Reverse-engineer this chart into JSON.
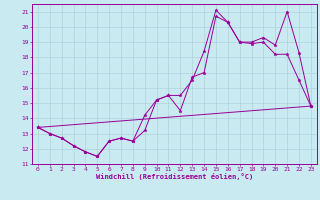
{
  "background_color": "#c8eaf0",
  "grid_color": "#a8ccd8",
  "line_color": "#990099",
  "xlabel": "Windchill (Refroidissement éolien,°C)",
  "xlim": [
    -0.5,
    23.5
  ],
  "ylim": [
    11,
    21.5
  ],
  "yticks": [
    11,
    12,
    13,
    14,
    15,
    16,
    17,
    18,
    19,
    20,
    21
  ],
  "xticks": [
    0,
    1,
    2,
    3,
    4,
    5,
    6,
    7,
    8,
    9,
    10,
    11,
    12,
    13,
    14,
    15,
    16,
    17,
    18,
    19,
    20,
    21,
    22,
    23
  ],
  "line1_x": [
    0,
    1,
    2,
    3,
    4,
    5,
    6,
    7,
    8,
    9,
    10,
    11,
    12,
    13,
    14,
    15,
    16,
    17,
    18,
    19,
    20,
    21,
    22,
    23
  ],
  "line1_y": [
    13.4,
    13.0,
    12.7,
    12.2,
    11.8,
    11.5,
    12.5,
    12.7,
    12.5,
    13.2,
    15.2,
    15.5,
    14.5,
    16.7,
    17.0,
    20.7,
    20.3,
    19.0,
    18.9,
    19.0,
    18.2,
    18.2,
    16.5,
    14.8
  ],
  "line2_x": [
    0,
    1,
    2,
    3,
    4,
    5,
    6,
    7,
    8,
    9,
    10,
    11,
    12,
    13,
    14,
    15,
    16,
    17,
    18,
    19,
    20,
    21,
    22,
    23
  ],
  "line2_y": [
    13.4,
    13.0,
    12.7,
    12.2,
    11.8,
    11.5,
    12.5,
    12.7,
    12.5,
    14.2,
    15.2,
    15.5,
    15.5,
    16.5,
    18.4,
    21.1,
    20.3,
    19.0,
    19.0,
    19.3,
    18.8,
    21.0,
    18.3,
    14.8
  ],
  "line3_x": [
    0,
    23
  ],
  "line3_y": [
    13.4,
    14.8
  ],
  "figsize": [
    3.2,
    2.0
  ],
  "dpi": 100
}
